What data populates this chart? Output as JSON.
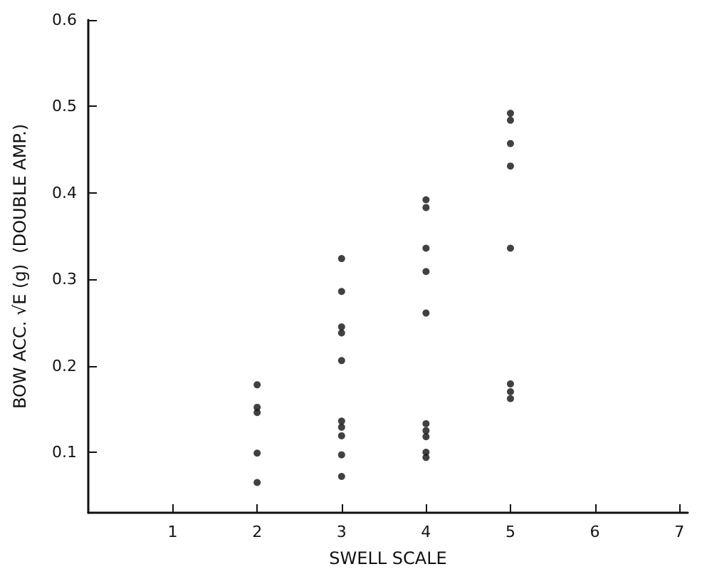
{
  "chart_data": {
    "type": "scatter",
    "xlabel": "SWELL SCALE",
    "ylabel": "BOW ACC. √E (g)  (DOUBLE AMP.)",
    "x": [
      2,
      2,
      2,
      2,
      2,
      3,
      3,
      3,
      3,
      3,
      3,
      3,
      3,
      3,
      3,
      4,
      4,
      4,
      4,
      4,
      4,
      4,
      4,
      4,
      4,
      5,
      5,
      5,
      5,
      5,
      5,
      5,
      5
    ],
    "values": [
      0.178,
      0.152,
      0.146,
      0.099,
      0.065,
      0.324,
      0.286,
      0.245,
      0.238,
      0.206,
      0.136,
      0.129,
      0.119,
      0.097,
      0.072,
      0.392,
      0.383,
      0.336,
      0.309,
      0.261,
      0.133,
      0.125,
      0.118,
      0.1,
      0.094,
      0.492,
      0.484,
      0.457,
      0.431,
      0.336,
      0.179,
      0.17,
      0.162
    ],
    "color": "#111111",
    "marker": "circle",
    "xlim": [
      0,
      7.1
    ],
    "xticks": [
      1,
      2,
      3,
      4,
      5,
      6,
      7
    ],
    "ylim": [
      0.03,
      0.6
    ],
    "yticks": [
      0.1,
      0.2,
      0.3,
      0.4,
      0.5,
      0.6
    ],
    "grid": false
  }
}
